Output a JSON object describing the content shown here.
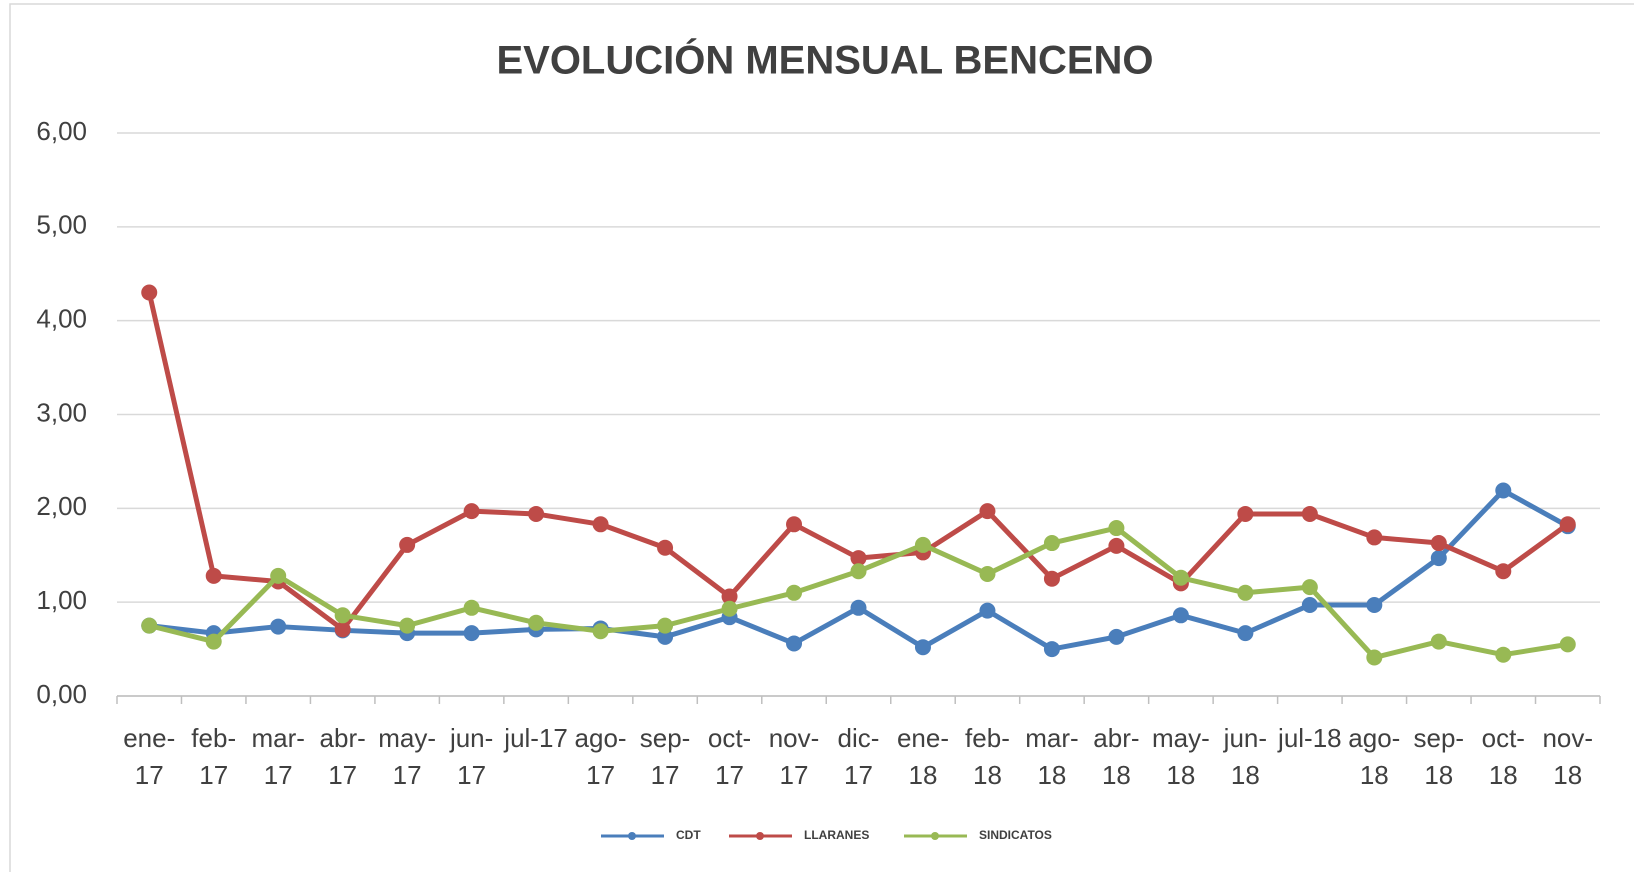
{
  "chart_data": {
    "type": "line",
    "title": "EVOLUCIÓN MENSUAL BENCENO",
    "categories": [
      "ene-17",
      "feb-17",
      "mar-17",
      "abr-17",
      "may-17",
      "jun-17",
      "jul-17",
      "ago-17",
      "sep-17",
      "oct-17",
      "nov-17",
      "dic-17",
      "ene-18",
      "feb-18",
      "mar-18",
      "abr-18",
      "may-18",
      "jun-18",
      "jul-18",
      "ago-18",
      "sep-18",
      "oct-18",
      "nov-18"
    ],
    "series": [
      {
        "name": "CDT",
        "color": "#4a7ebb",
        "values": [
          0.75,
          0.67,
          0.74,
          0.7,
          0.67,
          0.67,
          0.71,
          0.72,
          0.63,
          0.84,
          0.56,
          0.94,
          0.52,
          0.91,
          0.5,
          0.63,
          0.86,
          0.67,
          0.97,
          0.97,
          1.47,
          2.19,
          1.81
        ]
      },
      {
        "name": "LLARANES",
        "color": "#be4b48",
        "values": [
          4.3,
          1.28,
          1.22,
          0.71,
          1.61,
          1.97,
          1.94,
          1.83,
          1.58,
          1.06,
          1.83,
          1.47,
          1.53,
          1.97,
          1.25,
          1.6,
          1.2,
          1.94,
          1.94,
          1.69,
          1.63,
          1.33,
          1.83
        ]
      },
      {
        "name": "SINDICATOS",
        "color": "#98b954",
        "values": [
          0.75,
          0.58,
          1.28,
          0.86,
          0.75,
          0.94,
          0.78,
          0.69,
          0.75,
          0.93,
          1.1,
          1.33,
          1.61,
          1.3,
          1.63,
          1.79,
          1.26,
          1.1,
          1.16,
          0.41,
          0.58,
          0.44,
          0.55
        ]
      }
    ],
    "ylim": [
      0,
      6
    ],
    "yticks": [
      {
        "value": 0,
        "label": "0,00"
      },
      {
        "value": 1,
        "label": "1,00"
      },
      {
        "value": 2,
        "label": "2,00"
      },
      {
        "value": 3,
        "label": "3,00"
      },
      {
        "value": 4,
        "label": "4,00"
      },
      {
        "value": 5,
        "label": "5,00"
      },
      {
        "value": 6,
        "label": "6,00"
      }
    ],
    "grid": true,
    "legend": "bottom"
  }
}
